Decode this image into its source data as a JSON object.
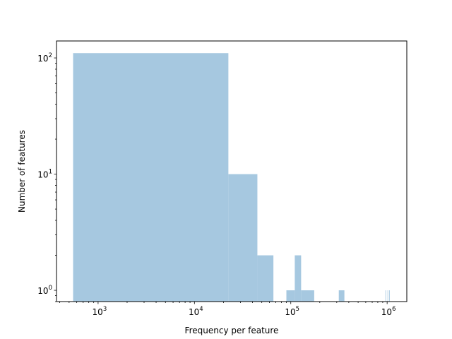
{
  "chart_data": {
    "type": "bar",
    "title": "",
    "xlabel": "Frequency per feature",
    "ylabel": "Number of features",
    "x_scale": "log",
    "y_scale": "log",
    "xlim": [
      370,
      1600000
    ],
    "ylim": [
      0.8,
      140
    ],
    "grid": false,
    "bar_color": "#a6c8e0",
    "x_ticks": [
      {
        "value": 1000,
        "base": "10",
        "exp": "3"
      },
      {
        "value": 10000,
        "base": "10",
        "exp": "4"
      },
      {
        "value": 100000,
        "base": "10",
        "exp": "5"
      },
      {
        "value": 1000000,
        "base": "10",
        "exp": "6"
      }
    ],
    "y_ticks": [
      {
        "value": 1,
        "base": "10",
        "exp": "0"
      },
      {
        "value": 10,
        "base": "10",
        "exp": "1"
      },
      {
        "value": 100,
        "base": "10",
        "exp": "2"
      }
    ],
    "bins": [
      {
        "x0": 550,
        "x1": 22500,
        "count": 110
      },
      {
        "x0": 22500,
        "x1": 45000,
        "count": 10
      },
      {
        "x0": 45000,
        "x1": 66000,
        "count": 2
      },
      {
        "x0": 90000,
        "x1": 110000,
        "count": 1
      },
      {
        "x0": 110000,
        "x1": 128000,
        "count": 2
      },
      {
        "x0": 128000,
        "x1": 175000,
        "count": 1
      },
      {
        "x0": 315000,
        "x1": 360000,
        "count": 1
      },
      {
        "x0": 960000,
        "x1": 970000,
        "count": 1
      },
      {
        "x0": 1010000,
        "x1": 1020000,
        "count": 1
      },
      {
        "x0": 1050000,
        "x1": 1060000,
        "count": 1
      }
    ]
  }
}
